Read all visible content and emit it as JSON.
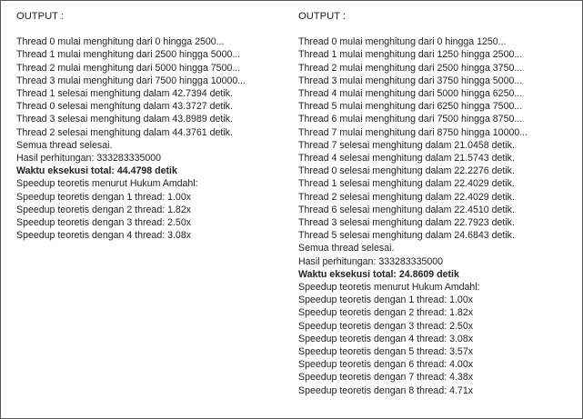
{
  "panels": [
    {
      "header": "OUTPUT :",
      "lines": [
        {
          "text": "Thread 0 mulai menghitung dari 0 hingga 2500...",
          "bold": false
        },
        {
          "text": "Thread 1 mulai menghitung dari 2500 hingga 5000...",
          "bold": false
        },
        {
          "text": "Thread 2 mulai menghitung dari 5000 hingga 7500...",
          "bold": false
        },
        {
          "text": "Thread 3 mulai menghitung dari 7500 hingga 10000...",
          "bold": false
        },
        {
          "text": "Thread 1 selesai menghitung dalam 42.7394 detik.",
          "bold": false
        },
        {
          "text": "Thread 0 selesai menghitung dalam 43.3727 detik.",
          "bold": false
        },
        {
          "text": "Thread 3 selesai menghitung dalam 43.8989 detik.",
          "bold": false
        },
        {
          "text": "Thread 2 selesai menghitung dalam 44.3761 detik.",
          "bold": false
        },
        {
          "text": "Semua thread selesai.",
          "bold": false
        },
        {
          "text": "Hasil perhitungan: 333283335000",
          "bold": false
        },
        {
          "text": "Waktu eksekusi total: 44.4798 detik",
          "bold": true
        },
        {
          "text": "Speedup teoretis menurut Hukum Amdahl:",
          "bold": false
        },
        {
          "text": "Speedup teoretis dengan 1 thread: 1.00x",
          "bold": false
        },
        {
          "text": "Speedup teoretis dengan 2 thread: 1.82x",
          "bold": false
        },
        {
          "text": "Speedup teoretis dengan 3 thread: 2.50x",
          "bold": false
        },
        {
          "text": "Speedup teoretis dengan 4 thread: 3.08x",
          "bold": false
        }
      ]
    },
    {
      "header": "OUTPUT :",
      "lines": [
        {
          "text": "Thread 0 mulai menghitung dari 0 hingga 1250...",
          "bold": false
        },
        {
          "text": "Thread 1 mulai menghitung dari 1250 hingga 2500...",
          "bold": false
        },
        {
          "text": "Thread 2 mulai menghitung dari 2500 hingga 3750...",
          "bold": false
        },
        {
          "text": "Thread 3 mulai menghitung dari 3750 hingga 5000...",
          "bold": false
        },
        {
          "text": "Thread 4 mulai menghitung dari 5000 hingga 6250...",
          "bold": false
        },
        {
          "text": "Thread 5 mulai menghitung dari 6250 hingga 7500...",
          "bold": false
        },
        {
          "text": "Thread 6 mulai menghitung dari 7500 hingga 8750...",
          "bold": false
        },
        {
          "text": "Thread 7 mulai menghitung dari 8750 hingga 10000...",
          "bold": false
        },
        {
          "text": "Thread 7 selesai menghitung dalam 21.0458 detik.",
          "bold": false
        },
        {
          "text": "Thread 4 selesai menghitung dalam 21.5743 detik.",
          "bold": false
        },
        {
          "text": "Thread 0 selesai menghitung dalam 22.2276 detik.",
          "bold": false
        },
        {
          "text": "Thread 1 selesai menghitung dalam 22.4029 detik.",
          "bold": false
        },
        {
          "text": "Thread 2 selesai menghitung dalam 22.4029 detik.",
          "bold": false
        },
        {
          "text": "Thread 6 selesai menghitung dalam 22.4510 detik.",
          "bold": false
        },
        {
          "text": "Thread 3 selesai menghitung dalam 22.7923 detik.",
          "bold": false
        },
        {
          "text": "Thread 5 selesai menghitung dalam 24.6843 detik.",
          "bold": false
        },
        {
          "text": "Semua thread selesai.",
          "bold": false
        },
        {
          "text": "Hasil perhitungan: 333283335000",
          "bold": false
        },
        {
          "text": "Waktu eksekusi total: 24.8609 detik",
          "bold": true
        },
        {
          "text": "Speedup teoretis menurut Hukum Amdahl:",
          "bold": false
        },
        {
          "text": "Speedup teoretis dengan 1 thread: 1.00x",
          "bold": false
        },
        {
          "text": "Speedup teoretis dengan 2 thread: 1.82x",
          "bold": false
        },
        {
          "text": "Speedup teoretis dengan 3 thread: 2.50x",
          "bold": false
        },
        {
          "text": "Speedup teoretis dengan 4 thread: 3.08x",
          "bold": false
        },
        {
          "text": "Speedup teoretis dengan 5 thread: 3.57x",
          "bold": false
        },
        {
          "text": "Speedup teoretis dengan 6 thread: 4.00x",
          "bold": false
        },
        {
          "text": "Speedup teoretis dengan 7 thread: 4.38x",
          "bold": false
        },
        {
          "text": "Speedup teoretis dengan 8 thread: 4.71x",
          "bold": false
        }
      ]
    }
  ]
}
